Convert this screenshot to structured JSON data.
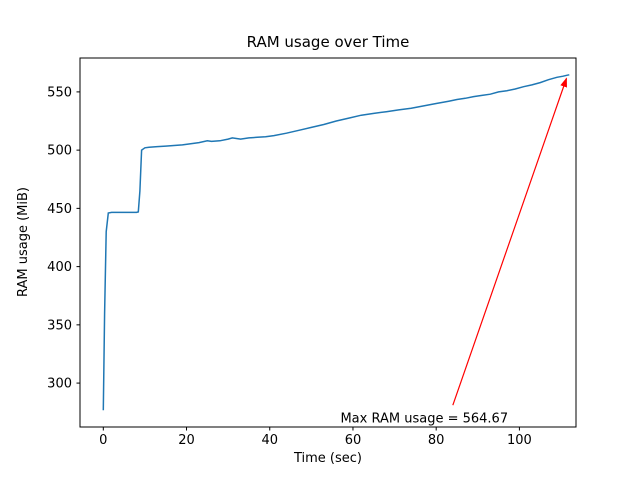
{
  "chart_data": {
    "type": "line",
    "title": "RAM usage over Time",
    "xlabel": "Time (sec)",
    "ylabel": "RAM usage (MiB)",
    "xlim": [
      -5.6,
      113.6
    ],
    "ylim": [
      262.3,
      579.1
    ],
    "xticks": [
      0,
      20,
      40,
      60,
      80,
      100
    ],
    "yticks": [
      300,
      350,
      400,
      450,
      500,
      550
    ],
    "grid": false,
    "legend": "none",
    "line_color": "#1f77b4",
    "series": [
      {
        "name": "RAM usage",
        "x": [
          0,
          0.3,
          0.7,
          1.2,
          2,
          3,
          4,
          5,
          6,
          7,
          8,
          8.4,
          8.8,
          9.2,
          10,
          11,
          13,
          15,
          17,
          19,
          21,
          23,
          25,
          26,
          28,
          30,
          31,
          33,
          35,
          37,
          39,
          41,
          44,
          47,
          50,
          53,
          56,
          59,
          62,
          65,
          68,
          71,
          74,
          77,
          80,
          83,
          85,
          87,
          89,
          91,
          93,
          95,
          97,
          99,
          101,
          103,
          105,
          107,
          109,
          110.5,
          111.5,
          112
        ],
        "y": [
          276.7,
          360,
          430,
          446,
          446.5,
          446.5,
          446.5,
          446.5,
          446.5,
          446.5,
          446.5,
          447,
          465,
          500,
          502,
          502.5,
          503,
          503.5,
          504,
          504.5,
          505.5,
          506.5,
          508,
          507.5,
          508,
          509.5,
          510.5,
          509.5,
          510.5,
          511,
          511.5,
          512.5,
          514.5,
          517,
          519.5,
          522,
          525,
          527.5,
          530,
          531.5,
          533,
          534.5,
          536,
          538,
          540,
          542,
          543.5,
          544.5,
          546,
          547,
          548,
          550,
          551,
          552.5,
          554.5,
          556,
          558,
          560.5,
          562.5,
          563.5,
          564.3,
          564.67
        ]
      }
    ],
    "annotation": {
      "text": "Max RAM usage = 564.67",
      "color": "#ff0000",
      "text_xy": [
        57,
        266
      ],
      "arrow_from": [
        84,
        281
      ],
      "arrow_to": [
        111.3,
        561.5
      ],
      "max_value": "564.67"
    }
  }
}
